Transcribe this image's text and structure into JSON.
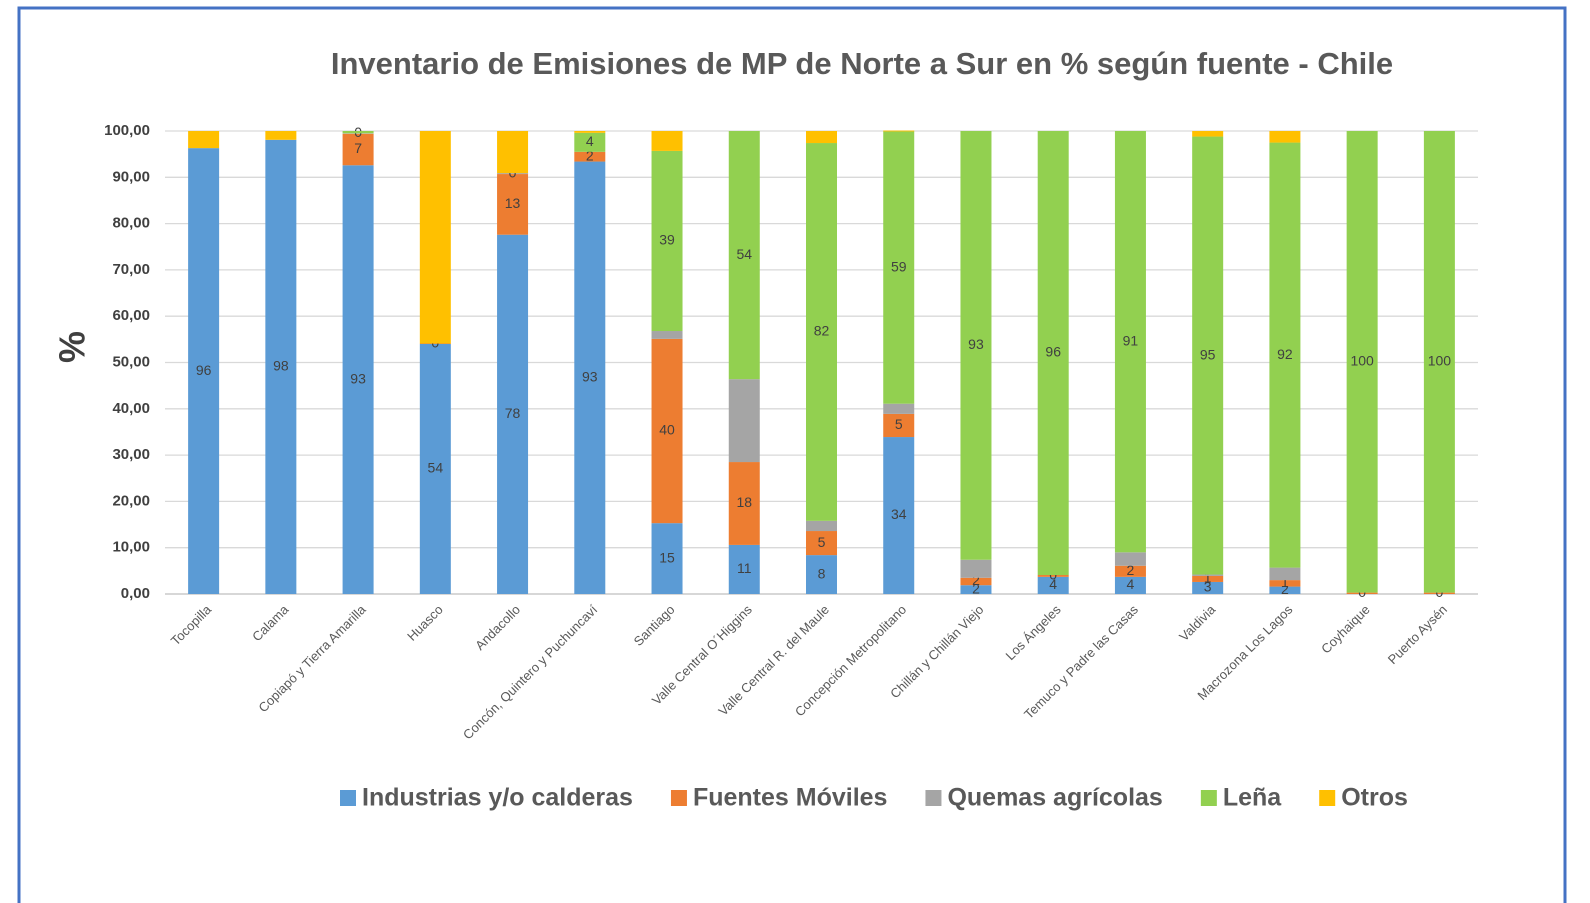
{
  "chart_data": {
    "type": "stacked_bar",
    "title": "Inventario de Emisiones de MP de Norte a Sur en % según fuente - Chile",
    "y_label": "%",
    "categories": [
      "Tocopilla",
      "Calama",
      "Copiapó y Tierra Amarilla",
      "Huasco",
      "Andacollo",
      "Concón, Quintero y Puchuncaví",
      "Santiago",
      "Valle Central O´Higgins",
      "Valle Central R. del Maule",
      "Concepción Metropolitano",
      "Chillán y Chillán Viejo",
      "Los Ángeles",
      "Temuco y Padre las Casas",
      "Valdivia",
      "Macrozona Los Lagos",
      "Coyhaique",
      "Puerto Aysén"
    ],
    "series": [
      {
        "name": "Industrias y/o calderas",
        "color": "#5b9bd5",
        "values": [
          96.3,
          98.1,
          92.6,
          54.0,
          77.6,
          93.4,
          15.3,
          10.6,
          8.4,
          33.9,
          1.9,
          3.7,
          3.7,
          2.6,
          1.6,
          0,
          0
        ],
        "value_labels": [
          "96",
          "98",
          "93",
          "54",
          "78",
          "93",
          "15",
          "11",
          "8",
          "34",
          "2",
          "4",
          "4",
          "3",
          "2",
          null,
          null
        ]
      },
      {
        "name": "Fuentes Móviles",
        "color": "#ed7d31",
        "values": [
          0,
          0,
          6.8,
          0.1,
          13.1,
          2.1,
          39.8,
          17.9,
          5.2,
          5.0,
          1.6,
          0.4,
          2.4,
          1.3,
          1.4,
          0.3,
          0.3
        ],
        "value_labels": [
          null,
          null,
          "7",
          "0",
          "13",
          "2",
          "40",
          "18",
          "5",
          "5",
          "2",
          "0",
          "2",
          "1",
          "1",
          "0",
          "0"
        ]
      },
      {
        "name": "Quemas agrícolas",
        "color": "#a5a5a5",
        "values": [
          0,
          0,
          0.1,
          0,
          0.2,
          0,
          1.7,
          17.9,
          2.2,
          2.2,
          3.9,
          0,
          2.9,
          0.3,
          2.7,
          0,
          0
        ],
        "value_labels": [
          null,
          null,
          "0",
          null,
          "0",
          null,
          null,
          null,
          null,
          null,
          null,
          null,
          null,
          null,
          null,
          null,
          null
        ]
      },
      {
        "name": "Leña",
        "color": "#92d050",
        "values": [
          0,
          0,
          0.5,
          0,
          0,
          4.1,
          38.9,
          53.6,
          81.6,
          58.8,
          92.6,
          95.9,
          91.0,
          94.6,
          91.8,
          99.7,
          99.7
        ],
        "value_labels": [
          null,
          null,
          null,
          null,
          null,
          "4",
          "39",
          "54",
          "82",
          "59",
          "93",
          "96",
          "91",
          "95",
          "92",
          "100",
          "100"
        ]
      },
      {
        "name": "Otros",
        "color": "#ffc000",
        "values": [
          3.7,
          1.9,
          0,
          45.9,
          9.1,
          0.4,
          4.3,
          0,
          2.6,
          0.2,
          0,
          0,
          0,
          1.2,
          2.5,
          0,
          0
        ]
      }
    ],
    "ylim": [
      0,
      100
    ],
    "yticks": [
      {
        "value": 0,
        "label": "0,00"
      },
      {
        "value": 10,
        "label": "10,00"
      },
      {
        "value": 20,
        "label": "20,00"
      },
      {
        "value": 30,
        "label": "30,00"
      },
      {
        "value": 40,
        "label": "40,00"
      },
      {
        "value": 50,
        "label": "50,00"
      },
      {
        "value": 60,
        "label": "60,00"
      },
      {
        "value": 70,
        "label": "70,00"
      },
      {
        "value": 80,
        "label": "80,00"
      },
      {
        "value": 90,
        "label": "90,00"
      },
      {
        "value": 100,
        "label": "100,00"
      }
    ],
    "grid": true,
    "legend": "bottom"
  }
}
